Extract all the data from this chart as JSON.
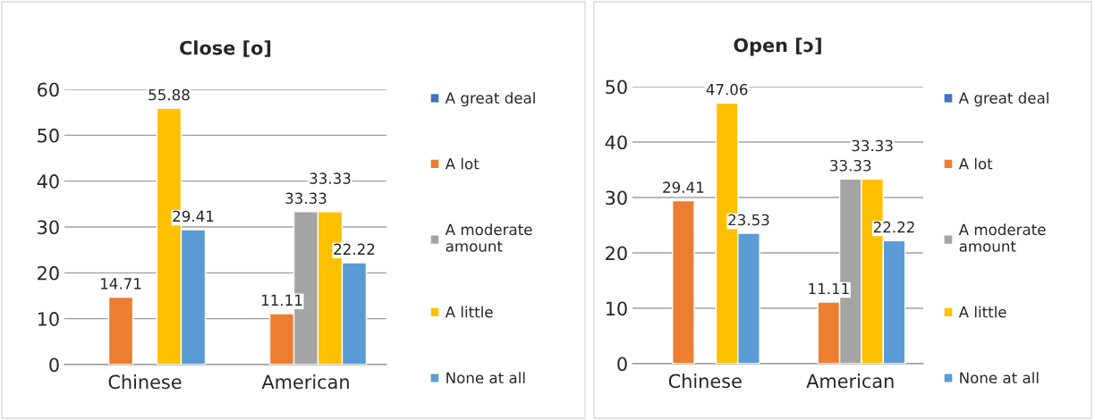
{
  "chart_data": [
    {
      "type": "bar",
      "title": "Close [o]",
      "categories": [
        "Chinese",
        "American"
      ],
      "ylim": [
        0,
        60
      ],
      "yticks": [
        0,
        10,
        20,
        30,
        40,
        50,
        60
      ],
      "grid": "y",
      "legend": "right",
      "data_labels": true,
      "series": [
        {
          "name": "A great deal",
          "color": "#4472c4",
          "values": [
            null,
            null
          ]
        },
        {
          "name": "A lot",
          "color": "#ed7d31",
          "values": [
            14.71,
            11.11
          ]
        },
        {
          "name": "A moderate amount",
          "color": "#a5a5a5",
          "values": [
            null,
            33.33
          ]
        },
        {
          "name": "A little",
          "color": "#ffc000",
          "values": [
            55.88,
            33.33
          ]
        },
        {
          "name": "None at all",
          "color": "#5b9bd5",
          "values": [
            29.41,
            22.22
          ]
        }
      ]
    },
    {
      "type": "bar",
      "title": "Open [ɔ]",
      "categories": [
        "Chinese",
        "American"
      ],
      "ylim": [
        0,
        50
      ],
      "yticks": [
        0,
        10,
        20,
        30,
        40,
        50
      ],
      "grid": "y",
      "legend": "right",
      "data_labels": true,
      "series": [
        {
          "name": "A great deal",
          "color": "#4472c4",
          "values": [
            null,
            null
          ]
        },
        {
          "name": "A lot",
          "color": "#ed7d31",
          "values": [
            29.41,
            11.11
          ]
        },
        {
          "name": "A moderate amount",
          "color": "#a5a5a5",
          "values": [
            null,
            33.33
          ]
        },
        {
          "name": "A little",
          "color": "#ffc000",
          "values": [
            47.06,
            33.33
          ]
        },
        {
          "name": "None at all",
          "color": "#5b9bd5",
          "values": [
            23.53,
            22.22
          ]
        }
      ]
    }
  ]
}
